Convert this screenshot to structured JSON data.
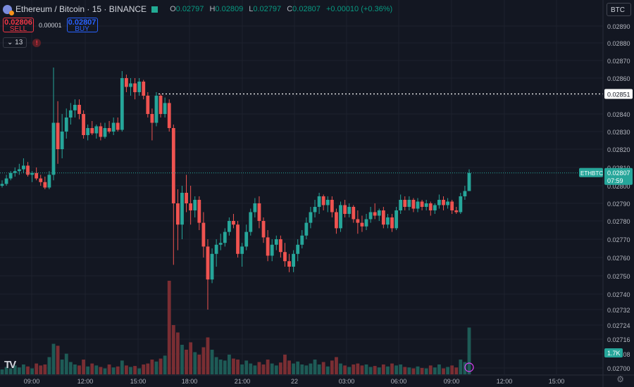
{
  "header": {
    "symbol": "Ethereum / Bitcoin · 15 · BINANCE",
    "ohlc": {
      "o_label": "O",
      "o": "0.02797",
      "h_label": "H",
      "h": "0.02809",
      "l_label": "L",
      "l": "0.02797",
      "c_label": "C",
      "c": "0.02807",
      "change": "+0.00010 (+0.36%)"
    }
  },
  "trade": {
    "sell_price": "0.02806",
    "sell_label": "SELL",
    "spread": "0.00001",
    "buy_price": "0.02807",
    "buy_label": "BUY"
  },
  "indicators": {
    "count": "13",
    "alert_icon": "alert-icon"
  },
  "currency_button": "BTC",
  "markers": {
    "watermark": "TV"
  },
  "colors": {
    "background": "#131722",
    "up": "#26a69a",
    "down": "#ef5350",
    "vol_up": "#1e5b56",
    "vol_down": "#7a2e33",
    "grid": "#1e222d",
    "axis_text": "#b2b5be"
  },
  "chart_data": {
    "type": "candlestick",
    "symbol": "ETHBTC",
    "interval": "15",
    "y_range": [
      0.02697,
      0.02895
    ],
    "y_ticks": [
      "0.02890",
      "0.02880",
      "0.02870",
      "0.02860",
      "0.02850",
      "0.02840",
      "0.02830",
      "0.02820",
      "0.02810",
      "0.02800",
      "0.02790",
      "0.02780",
      "0.02770",
      "0.02760",
      "0.02750",
      "0.02740",
      "0.02732",
      "0.02724",
      "0.02716",
      "0.02708",
      "0.02700"
    ],
    "x_ticks": [
      "09:00",
      "12:00",
      "15:00",
      "18:00",
      "21:00",
      "22",
      "03:00",
      "06:00",
      "09:00",
      "12:00",
      "15:00"
    ],
    "last_price": {
      "symbol_label": "ETHBTC",
      "value": "0.02807",
      "countdown": "07:59"
    },
    "high_line": {
      "value": "0.02851"
    },
    "volume_label": "1.7K",
    "volume_max": 1.9,
    "candles": [
      {
        "o": 0.028,
        "h": 0.02803,
        "l": 0.02799,
        "c": 0.02801,
        "v": 0.1
      },
      {
        "o": 0.02801,
        "h": 0.02806,
        "l": 0.028,
        "c": 0.02804,
        "v": 0.15
      },
      {
        "o": 0.02804,
        "h": 0.02808,
        "l": 0.02803,
        "c": 0.02807,
        "v": 0.12
      },
      {
        "o": 0.02807,
        "h": 0.0281,
        "l": 0.02805,
        "c": 0.02808,
        "v": 0.18
      },
      {
        "o": 0.02808,
        "h": 0.02812,
        "l": 0.02806,
        "c": 0.02809,
        "v": 0.14
      },
      {
        "o": 0.02809,
        "h": 0.02815,
        "l": 0.02807,
        "c": 0.02811,
        "v": 0.2
      },
      {
        "o": 0.02811,
        "h": 0.02813,
        "l": 0.02805,
        "c": 0.02806,
        "v": 0.16
      },
      {
        "o": 0.02806,
        "h": 0.02808,
        "l": 0.02802,
        "c": 0.02807,
        "v": 0.12
      },
      {
        "o": 0.02807,
        "h": 0.0281,
        "l": 0.02803,
        "c": 0.02804,
        "v": 0.22
      },
      {
        "o": 0.02804,
        "h": 0.02806,
        "l": 0.028,
        "c": 0.02802,
        "v": 0.18
      },
      {
        "o": 0.02802,
        "h": 0.02805,
        "l": 0.02798,
        "c": 0.02799,
        "v": 0.2
      },
      {
        "o": 0.02799,
        "h": 0.02808,
        "l": 0.02798,
        "c": 0.02806,
        "v": 0.35
      },
      {
        "o": 0.02806,
        "h": 0.02866,
        "l": 0.02803,
        "c": 0.02835,
        "v": 0.62
      },
      {
        "o": 0.02835,
        "h": 0.02847,
        "l": 0.02812,
        "c": 0.0282,
        "v": 0.58
      },
      {
        "o": 0.0282,
        "h": 0.0284,
        "l": 0.02815,
        "c": 0.0283,
        "v": 0.3
      },
      {
        "o": 0.0283,
        "h": 0.02843,
        "l": 0.02826,
        "c": 0.02838,
        "v": 0.42
      },
      {
        "o": 0.02838,
        "h": 0.02846,
        "l": 0.02834,
        "c": 0.02842,
        "v": 0.25
      },
      {
        "o": 0.02842,
        "h": 0.02848,
        "l": 0.02838,
        "c": 0.02845,
        "v": 0.2
      },
      {
        "o": 0.02845,
        "h": 0.02848,
        "l": 0.02837,
        "c": 0.0284,
        "v": 0.18
      },
      {
        "o": 0.0284,
        "h": 0.02842,
        "l": 0.02826,
        "c": 0.02828,
        "v": 0.3
      },
      {
        "o": 0.02828,
        "h": 0.02834,
        "l": 0.02825,
        "c": 0.02832,
        "v": 0.16
      },
      {
        "o": 0.02832,
        "h": 0.02836,
        "l": 0.02828,
        "c": 0.02829,
        "v": 0.22
      },
      {
        "o": 0.02829,
        "h": 0.02834,
        "l": 0.02826,
        "c": 0.02833,
        "v": 0.18
      },
      {
        "o": 0.02833,
        "h": 0.02835,
        "l": 0.02825,
        "c": 0.02827,
        "v": 0.15
      },
      {
        "o": 0.02827,
        "h": 0.02835,
        "l": 0.02826,
        "c": 0.02832,
        "v": 0.12
      },
      {
        "o": 0.02832,
        "h": 0.02836,
        "l": 0.02829,
        "c": 0.0283,
        "v": 0.2
      },
      {
        "o": 0.0283,
        "h": 0.02838,
        "l": 0.02828,
        "c": 0.02835,
        "v": 0.14
      },
      {
        "o": 0.02835,
        "h": 0.02838,
        "l": 0.0283,
        "c": 0.02831,
        "v": 0.16
      },
      {
        "o": 0.02831,
        "h": 0.02864,
        "l": 0.0283,
        "c": 0.0286,
        "v": 0.28
      },
      {
        "o": 0.0286,
        "h": 0.02862,
        "l": 0.02852,
        "c": 0.02855,
        "v": 0.18
      },
      {
        "o": 0.02855,
        "h": 0.0286,
        "l": 0.0285,
        "c": 0.02857,
        "v": 0.15
      },
      {
        "o": 0.02857,
        "h": 0.0286,
        "l": 0.02848,
        "c": 0.02852,
        "v": 0.17
      },
      {
        "o": 0.02852,
        "h": 0.0286,
        "l": 0.0285,
        "c": 0.02858,
        "v": 0.12
      },
      {
        "o": 0.02858,
        "h": 0.02859,
        "l": 0.02848,
        "c": 0.0285,
        "v": 0.2
      },
      {
        "o": 0.0285,
        "h": 0.02852,
        "l": 0.02838,
        "c": 0.0284,
        "v": 0.22
      },
      {
        "o": 0.0284,
        "h": 0.02843,
        "l": 0.02825,
        "c": 0.02835,
        "v": 0.3
      },
      {
        "o": 0.02835,
        "h": 0.02852,
        "l": 0.02833,
        "c": 0.0285,
        "v": 0.26
      },
      {
        "o": 0.0285,
        "h": 0.02851,
        "l": 0.02838,
        "c": 0.0284,
        "v": 0.32
      },
      {
        "o": 0.0284,
        "h": 0.02849,
        "l": 0.02838,
        "c": 0.02846,
        "v": 0.38
      },
      {
        "o": 0.02846,
        "h": 0.02848,
        "l": 0.0283,
        "c": 0.02832,
        "v": 1.9
      },
      {
        "o": 0.02832,
        "h": 0.02834,
        "l": 0.02756,
        "c": 0.0279,
        "v": 1.0
      },
      {
        "o": 0.0279,
        "h": 0.02798,
        "l": 0.02764,
        "c": 0.02778,
        "v": 0.85
      },
      {
        "o": 0.02778,
        "h": 0.028,
        "l": 0.0277,
        "c": 0.02796,
        "v": 0.6
      },
      {
        "o": 0.02796,
        "h": 0.02806,
        "l": 0.02785,
        "c": 0.0279,
        "v": 0.5
      },
      {
        "o": 0.0279,
        "h": 0.028,
        "l": 0.02778,
        "c": 0.02786,
        "v": 0.65
      },
      {
        "o": 0.02786,
        "h": 0.02794,
        "l": 0.02782,
        "c": 0.02792,
        "v": 0.45
      },
      {
        "o": 0.02792,
        "h": 0.02794,
        "l": 0.02775,
        "c": 0.02779,
        "v": 0.4
      },
      {
        "o": 0.02779,
        "h": 0.02785,
        "l": 0.0276,
        "c": 0.02766,
        "v": 0.55
      },
      {
        "o": 0.02766,
        "h": 0.0277,
        "l": 0.02732,
        "c": 0.02748,
        "v": 0.75
      },
      {
        "o": 0.02748,
        "h": 0.02765,
        "l": 0.02746,
        "c": 0.02762,
        "v": 0.5
      },
      {
        "o": 0.02762,
        "h": 0.0277,
        "l": 0.02755,
        "c": 0.02767,
        "v": 0.35
      },
      {
        "o": 0.02767,
        "h": 0.02773,
        "l": 0.02764,
        "c": 0.02768,
        "v": 0.3
      },
      {
        "o": 0.02768,
        "h": 0.02776,
        "l": 0.02766,
        "c": 0.02774,
        "v": 0.28
      },
      {
        "o": 0.02774,
        "h": 0.02782,
        "l": 0.02772,
        "c": 0.0278,
        "v": 0.4
      },
      {
        "o": 0.0278,
        "h": 0.02784,
        "l": 0.02776,
        "c": 0.02778,
        "v": 0.32
      },
      {
        "o": 0.02778,
        "h": 0.0278,
        "l": 0.0276,
        "c": 0.02762,
        "v": 0.3
      },
      {
        "o": 0.02762,
        "h": 0.02768,
        "l": 0.02755,
        "c": 0.02766,
        "v": 0.2
      },
      {
        "o": 0.02766,
        "h": 0.02778,
        "l": 0.02764,
        "c": 0.02774,
        "v": 0.28
      },
      {
        "o": 0.02774,
        "h": 0.02787,
        "l": 0.02772,
        "c": 0.02785,
        "v": 0.22
      },
      {
        "o": 0.02785,
        "h": 0.02793,
        "l": 0.02782,
        "c": 0.0279,
        "v": 0.18
      },
      {
        "o": 0.0279,
        "h": 0.02794,
        "l": 0.02776,
        "c": 0.0278,
        "v": 0.25
      },
      {
        "o": 0.0278,
        "h": 0.02782,
        "l": 0.02768,
        "c": 0.02771,
        "v": 0.2
      },
      {
        "o": 0.02771,
        "h": 0.02775,
        "l": 0.02758,
        "c": 0.02761,
        "v": 0.3
      },
      {
        "o": 0.02761,
        "h": 0.0277,
        "l": 0.02758,
        "c": 0.02767,
        "v": 0.22
      },
      {
        "o": 0.02767,
        "h": 0.02772,
        "l": 0.02764,
        "c": 0.0277,
        "v": 0.18
      },
      {
        "o": 0.0277,
        "h": 0.02772,
        "l": 0.0276,
        "c": 0.02763,
        "v": 0.24
      },
      {
        "o": 0.02763,
        "h": 0.02768,
        "l": 0.02755,
        "c": 0.02758,
        "v": 0.4
      },
      {
        "o": 0.02758,
        "h": 0.02762,
        "l": 0.02752,
        "c": 0.02755,
        "v": 0.28
      },
      {
        "o": 0.02755,
        "h": 0.02764,
        "l": 0.02752,
        "c": 0.02762,
        "v": 0.22
      },
      {
        "o": 0.02762,
        "h": 0.0277,
        "l": 0.02758,
        "c": 0.02767,
        "v": 0.26
      },
      {
        "o": 0.02767,
        "h": 0.02775,
        "l": 0.02765,
        "c": 0.02772,
        "v": 0.2
      },
      {
        "o": 0.02772,
        "h": 0.02782,
        "l": 0.0277,
        "c": 0.02779,
        "v": 0.18
      },
      {
        "o": 0.02779,
        "h": 0.02788,
        "l": 0.02776,
        "c": 0.02785,
        "v": 0.22
      },
      {
        "o": 0.02785,
        "h": 0.02792,
        "l": 0.02782,
        "c": 0.02788,
        "v": 0.3
      },
      {
        "o": 0.02788,
        "h": 0.02796,
        "l": 0.02784,
        "c": 0.02794,
        "v": 0.2
      },
      {
        "o": 0.02794,
        "h": 0.02795,
        "l": 0.02786,
        "c": 0.02789,
        "v": 0.25
      },
      {
        "o": 0.02789,
        "h": 0.02794,
        "l": 0.02785,
        "c": 0.02792,
        "v": 0.16
      },
      {
        "o": 0.02792,
        "h": 0.02794,
        "l": 0.02782,
        "c": 0.02785,
        "v": 0.28
      },
      {
        "o": 0.02785,
        "h": 0.02787,
        "l": 0.02773,
        "c": 0.02776,
        "v": 0.35
      },
      {
        "o": 0.02776,
        "h": 0.02791,
        "l": 0.02774,
        "c": 0.02789,
        "v": 0.22
      },
      {
        "o": 0.02789,
        "h": 0.02792,
        "l": 0.02782,
        "c": 0.02784,
        "v": 0.18
      },
      {
        "o": 0.02784,
        "h": 0.0279,
        "l": 0.02782,
        "c": 0.02788,
        "v": 0.15
      },
      {
        "o": 0.02788,
        "h": 0.02789,
        "l": 0.02779,
        "c": 0.02781,
        "v": 0.2
      },
      {
        "o": 0.02781,
        "h": 0.02786,
        "l": 0.02773,
        "c": 0.02779,
        "v": 0.22
      },
      {
        "o": 0.02779,
        "h": 0.02783,
        "l": 0.02774,
        "c": 0.02777,
        "v": 0.18
      },
      {
        "o": 0.02777,
        "h": 0.02784,
        "l": 0.02775,
        "c": 0.02781,
        "v": 0.2
      },
      {
        "o": 0.02781,
        "h": 0.02788,
        "l": 0.02779,
        "c": 0.02785,
        "v": 0.15
      },
      {
        "o": 0.02785,
        "h": 0.0279,
        "l": 0.02781,
        "c": 0.02783,
        "v": 0.17
      },
      {
        "o": 0.02783,
        "h": 0.02787,
        "l": 0.0278,
        "c": 0.02786,
        "v": 0.14
      },
      {
        "o": 0.02786,
        "h": 0.02788,
        "l": 0.02776,
        "c": 0.02778,
        "v": 0.2
      },
      {
        "o": 0.02778,
        "h": 0.02784,
        "l": 0.02776,
        "c": 0.02782,
        "v": 0.16
      },
      {
        "o": 0.02782,
        "h": 0.02784,
        "l": 0.02774,
        "c": 0.02776,
        "v": 0.22
      },
      {
        "o": 0.02776,
        "h": 0.02788,
        "l": 0.02775,
        "c": 0.02786,
        "v": 0.18
      },
      {
        "o": 0.02786,
        "h": 0.02795,
        "l": 0.02784,
        "c": 0.02792,
        "v": 0.2
      },
      {
        "o": 0.02792,
        "h": 0.02794,
        "l": 0.02786,
        "c": 0.02788,
        "v": 0.15
      },
      {
        "o": 0.02788,
        "h": 0.02794,
        "l": 0.02786,
        "c": 0.02792,
        "v": 0.14
      },
      {
        "o": 0.02792,
        "h": 0.02793,
        "l": 0.02785,
        "c": 0.02787,
        "v": 0.12
      },
      {
        "o": 0.02787,
        "h": 0.02793,
        "l": 0.02785,
        "c": 0.02791,
        "v": 0.16
      },
      {
        "o": 0.02791,
        "h": 0.02792,
        "l": 0.02786,
        "c": 0.02788,
        "v": 0.13
      },
      {
        "o": 0.02788,
        "h": 0.02792,
        "l": 0.02786,
        "c": 0.0279,
        "v": 0.12
      },
      {
        "o": 0.0279,
        "h": 0.02791,
        "l": 0.02783,
        "c": 0.02786,
        "v": 0.18
      },
      {
        "o": 0.02786,
        "h": 0.0279,
        "l": 0.02784,
        "c": 0.02789,
        "v": 0.14
      },
      {
        "o": 0.02789,
        "h": 0.02795,
        "l": 0.02787,
        "c": 0.02792,
        "v": 0.2
      },
      {
        "o": 0.02792,
        "h": 0.02794,
        "l": 0.02786,
        "c": 0.02789,
        "v": 0.12
      },
      {
        "o": 0.02789,
        "h": 0.02793,
        "l": 0.02787,
        "c": 0.02791,
        "v": 0.15
      },
      {
        "o": 0.02791,
        "h": 0.02792,
        "l": 0.02784,
        "c": 0.02786,
        "v": 0.18
      },
      {
        "o": 0.02786,
        "h": 0.02788,
        "l": 0.02784,
        "c": 0.02785,
        "v": 0.14
      },
      {
        "o": 0.02785,
        "h": 0.02796,
        "l": 0.02784,
        "c": 0.02794,
        "v": 0.3
      },
      {
        "o": 0.02794,
        "h": 0.028,
        "l": 0.02792,
        "c": 0.02797,
        "v": 0.25
      },
      {
        "o": 0.02797,
        "h": 0.02809,
        "l": 0.02797,
        "c": 0.02807,
        "v": 0.95
      }
    ]
  }
}
